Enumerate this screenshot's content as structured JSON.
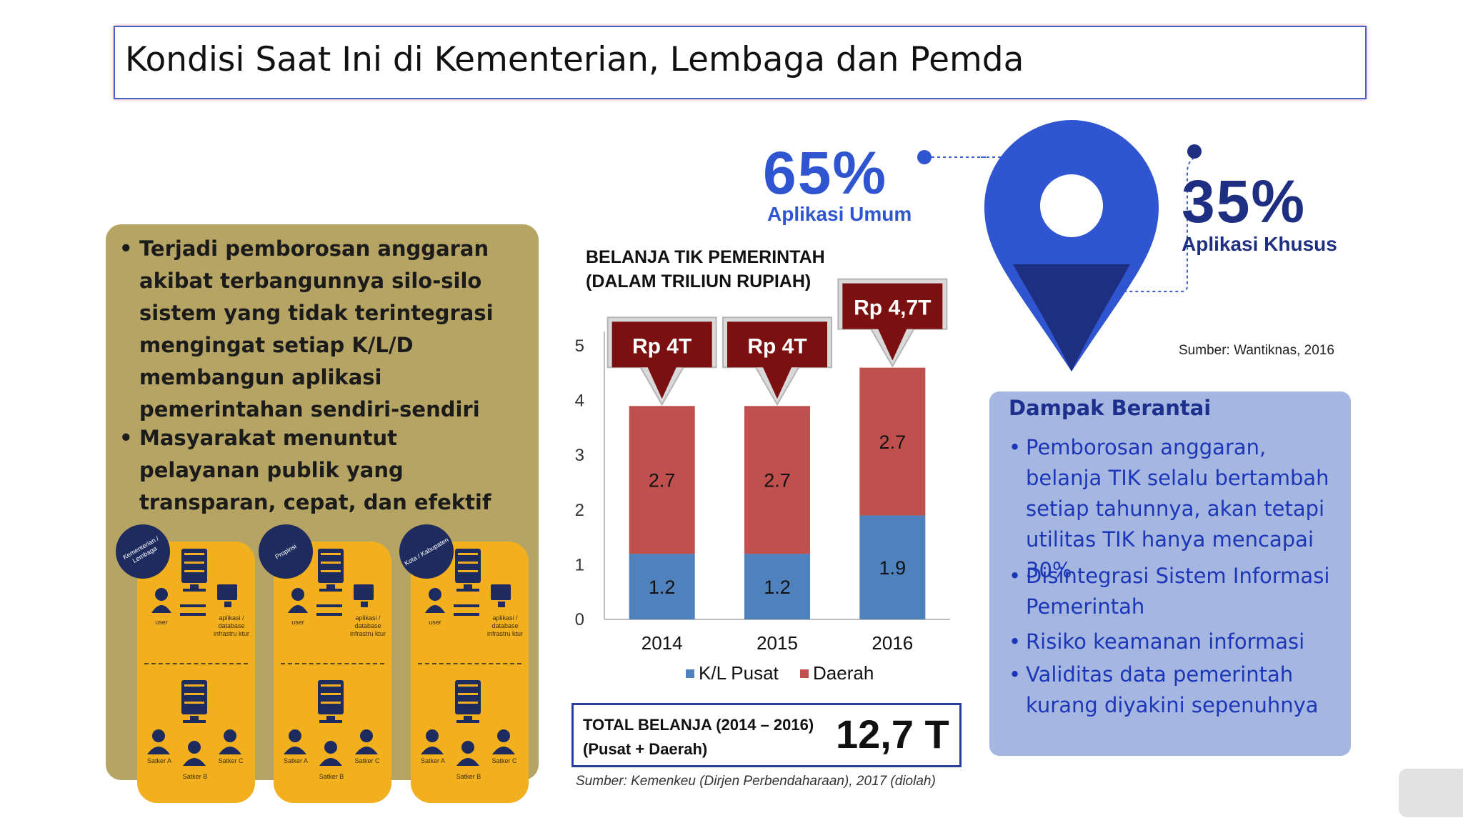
{
  "title": "Kondisi Saat Ini di Kementerian, Lembaga dan Pemda",
  "left_panel": {
    "bullets": [
      "Terjadi pemborosan anggaran akibat terbangunnya silo-silo sistem yang tidak terintegrasi mengingat setiap K/L/D membangun aplikasi pemerintahan sendiri-sendiri",
      "Masyarakat menuntut pelayanan publik yang transparan, cepat, dan efektif"
    ],
    "cards": [
      {
        "badge": "Kementerian / Lembaga",
        "user": "user",
        "app": "aplikasi / database infrastru ktur",
        "satker_a": "Satker A",
        "satker_b": "Satker B",
        "satker_c": "Satker C"
      },
      {
        "badge": "Propinsi",
        "user": "user",
        "app": "aplikasi / database infrastru ktur",
        "satker_a": "Satker A",
        "satker_b": "Satker B",
        "satker_c": "Satker C"
      },
      {
        "badge": "Kota / Kabupaten",
        "user": "user",
        "app": "aplikasi / database infrastru ktur",
        "satker_a": "Satker A",
        "satker_b": "Satker B",
        "satker_c": "Satker C"
      }
    ]
  },
  "chart_data": {
    "type": "bar",
    "stacked": true,
    "title": "BELANJA TIK PEMERINTAH\n(DALAM TRILIUN RUPIAH)",
    "categories": [
      "2014",
      "2015",
      "2016"
    ],
    "series": [
      {
        "name": "K/L Pusat",
        "values": [
          1.2,
          1.2,
          1.9
        ],
        "value_labels": [
          "1.2",
          "1.2",
          "1.9"
        ],
        "color": "#4f81bd"
      },
      {
        "name": "Daerah",
        "values": [
          2.7,
          2.7,
          2.7
        ],
        "value_labels": [
          "2.7",
          "2.7",
          "2.7"
        ],
        "color": "#c0504d"
      }
    ],
    "totals": [
      "Rp 4T",
      "Rp 4T",
      "Rp 4,7T"
    ],
    "ylim": [
      0,
      5
    ],
    "yticks": [
      "0",
      "1",
      "2",
      "3",
      "4",
      "5"
    ],
    "legend_position": "bottom",
    "grid": false
  },
  "total": {
    "label_line1": "TOTAL BELANJA (2014 – 2016)",
    "label_line2": "(Pusat + Daerah)",
    "value": "12,7 T"
  },
  "source_left": "Sumber: Kemenkeu (Dirjen Perbendaharaan), 2017 (diolah)",
  "stats": {
    "umum_pct": "65%",
    "umum_label": "Aplikasi Umum",
    "khusus_pct": "35%",
    "khusus_label": "Aplikasi Khusus",
    "source": "Sumber: Wantiknas, 2016",
    "colors": {
      "umum": "#2f55d0",
      "khusus": "#1e2f82"
    }
  },
  "dampak": {
    "title": "Dampak Berantai",
    "items": [
      "Pemborosan anggaran, belanja TIK selalu bertambah setiap tahunnya, akan tetapi utilitas TIK hanya mencapai 30%",
      "Disintegrasi Sistem Informasi Pemerintah",
      "Risiko keamanan informasi",
      "Validitas data pemerintah kurang diyakini sepenuhnya"
    ]
  }
}
